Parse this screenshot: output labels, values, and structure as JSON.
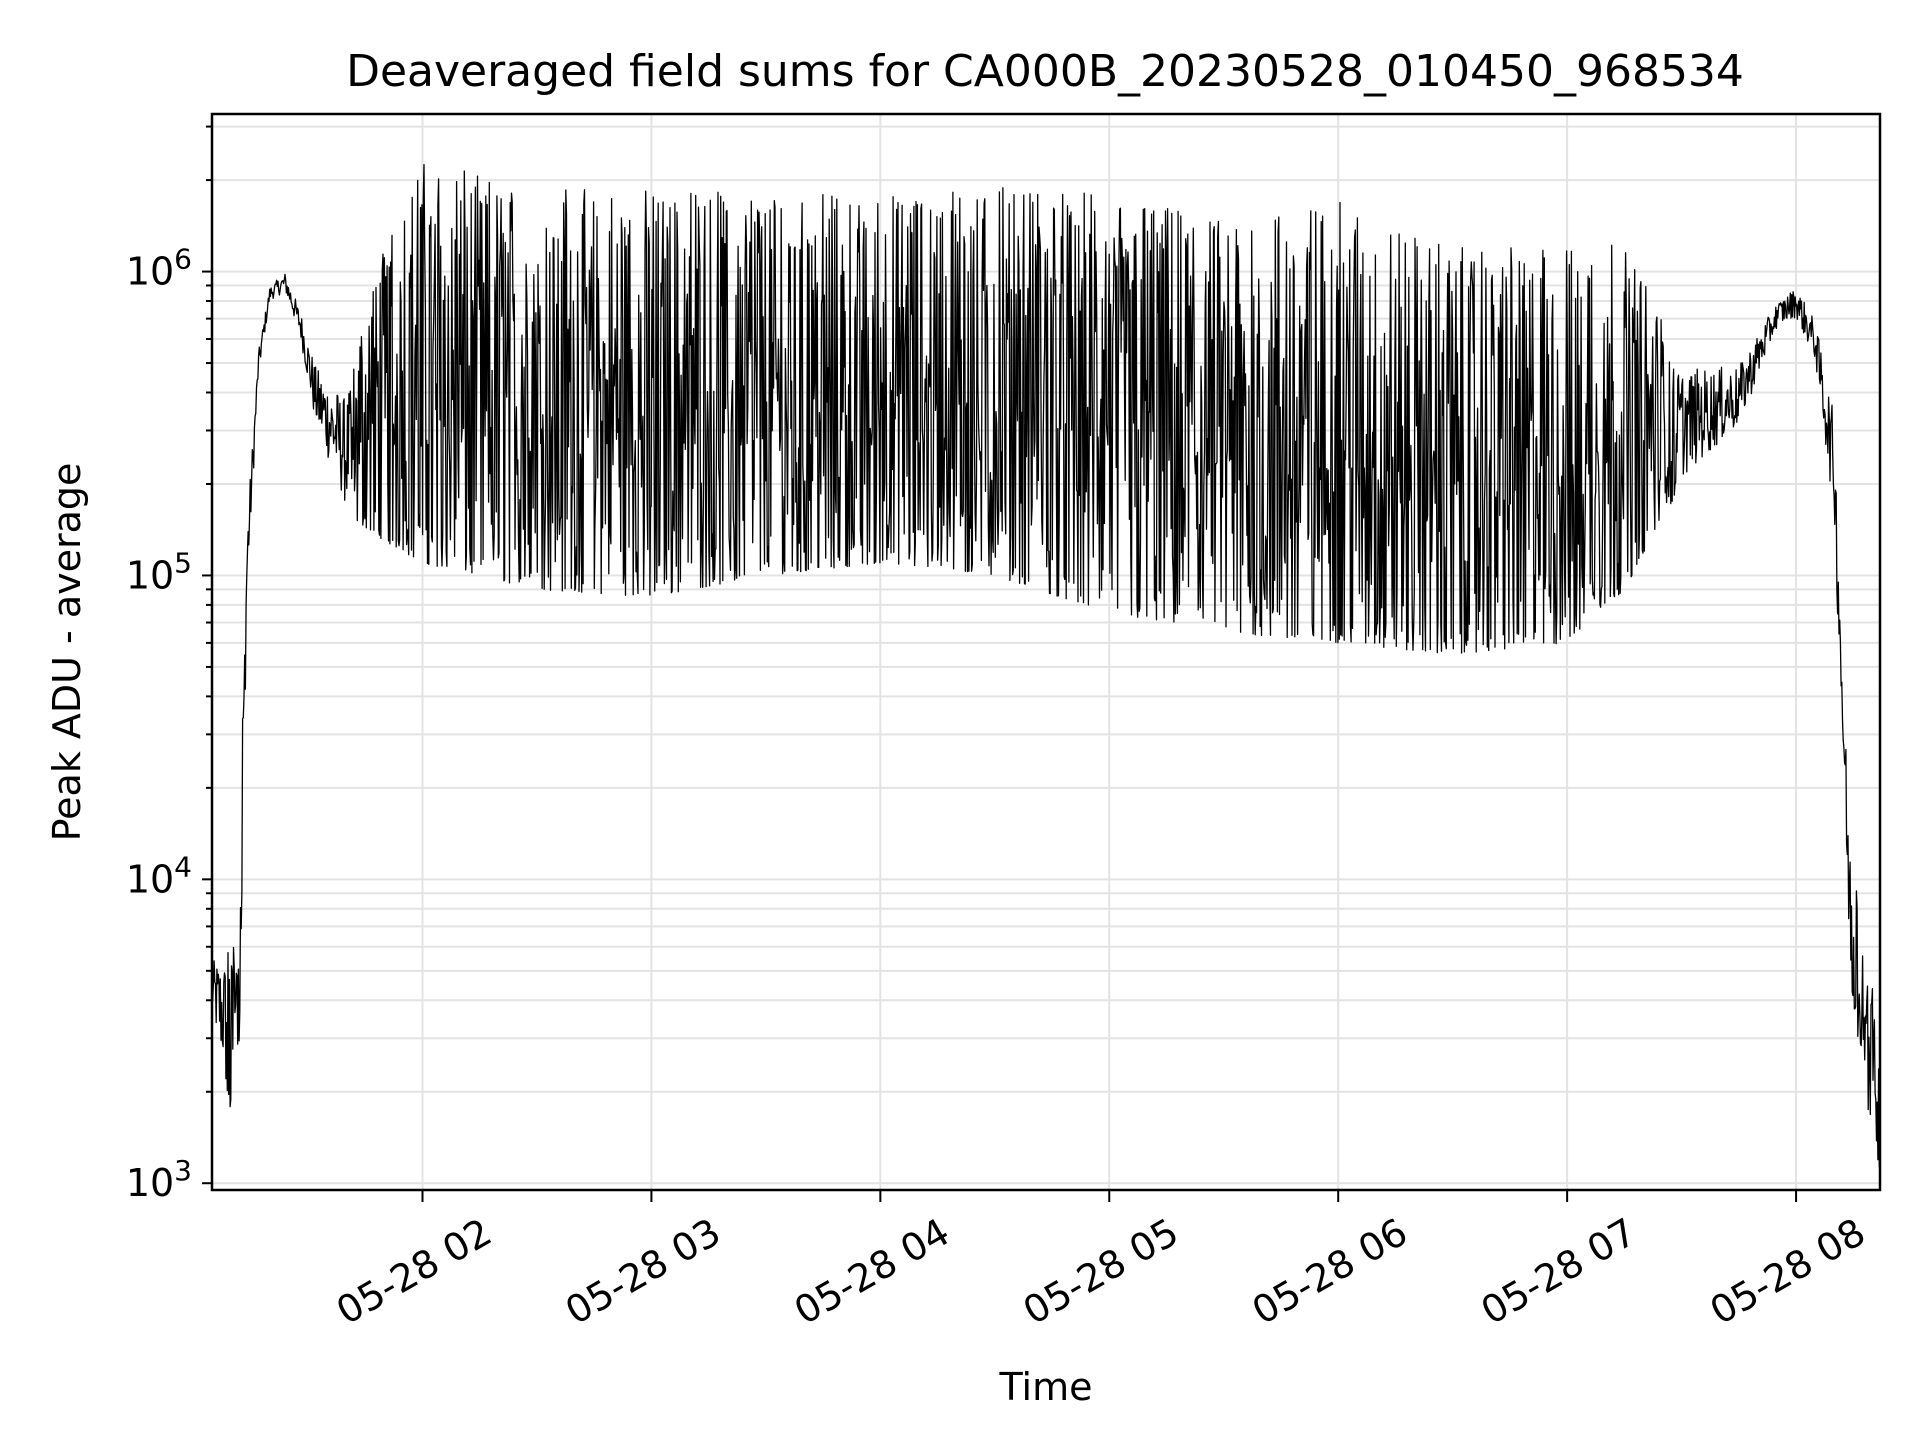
{
  "chart_data": {
    "type": "line",
    "title": "Deaveraged field sums for CA000B_20230528_010450_968534",
    "xlabel": "Time",
    "ylabel": "Peak ADU - average",
    "yscale": "log",
    "grid": true,
    "xlim": [
      "2023-05-28 01:04:50",
      "2023-05-28 08:22:00"
    ],
    "ylim": [
      950,
      3300000
    ],
    "yticks": [
      {
        "value": 1000,
        "base": "10",
        "exp": "3"
      },
      {
        "value": 10000,
        "base": "10",
        "exp": "4"
      },
      {
        "value": 100000,
        "base": "10",
        "exp": "5"
      },
      {
        "value": 1000000,
        "base": "10",
        "exp": "6"
      }
    ],
    "xticks": [
      {
        "time": "2023-05-28 02:00",
        "label": "05-28 02"
      },
      {
        "time": "2023-05-28 03:00",
        "label": "05-28 03"
      },
      {
        "time": "2023-05-28 04:00",
        "label": "05-28 04"
      },
      {
        "time": "2023-05-28 05:00",
        "label": "05-28 05"
      },
      {
        "time": "2023-05-28 06:00",
        "label": "05-28 06"
      },
      {
        "time": "2023-05-28 07:00",
        "label": "05-28 07"
      },
      {
        "time": "2023-05-28 08:00",
        "label": "05-28 08"
      }
    ],
    "series": [
      {
        "color": "#000000",
        "envelope_points": [
          {
            "time": "2023-05-28 01:04:50",
            "low": 3500,
            "high": 5500
          },
          {
            "time": "2023-05-28 01:10:00",
            "low": 1600,
            "high": 6000
          },
          {
            "time": "2023-05-28 01:12:00",
            "low": 3000,
            "high": 14000
          },
          {
            "time": "2023-05-28 01:14:00",
            "low": 80000,
            "high": 150000
          },
          {
            "time": "2023-05-28 01:17:00",
            "low": 450000,
            "high": 550000
          },
          {
            "time": "2023-05-28 01:20:00",
            "low": 800000,
            "high": 900000
          },
          {
            "time": "2023-05-28 01:24:00",
            "low": 850000,
            "high": 1000000
          },
          {
            "time": "2023-05-28 01:28:00",
            "low": 600000,
            "high": 750000
          },
          {
            "time": "2023-05-28 01:32:00",
            "low": 300000,
            "high": 500000
          },
          {
            "time": "2023-05-28 01:40:00",
            "low": 160000,
            "high": 400000
          },
          {
            "time": "2023-05-28 01:50:00",
            "low": 130000,
            "high": 1300000
          },
          {
            "time": "2023-05-28 02:00:00",
            "low": 110000,
            "high": 2300000
          },
          {
            "time": "2023-05-28 02:30:00",
            "low": 90000,
            "high": 1900000
          },
          {
            "time": "2023-05-28 03:00:00",
            "low": 85000,
            "high": 1900000
          },
          {
            "time": "2023-05-28 03:30:00",
            "low": 100000,
            "high": 1800000
          },
          {
            "time": "2023-05-28 04:00:00",
            "low": 110000,
            "high": 1800000
          },
          {
            "time": "2023-05-28 04:30:00",
            "low": 100000,
            "high": 1900000
          },
          {
            "time": "2023-05-28 05:00:00",
            "low": 75000,
            "high": 1800000
          },
          {
            "time": "2023-05-28 05:30:00",
            "low": 65000,
            "high": 1500000
          },
          {
            "time": "2023-05-28 06:00:00",
            "low": 60000,
            "high": 1700000
          },
          {
            "time": "2023-05-28 06:30:00",
            "low": 55000,
            "high": 1200000
          },
          {
            "time": "2023-05-28 07:00:00",
            "low": 60000,
            "high": 1200000
          },
          {
            "time": "2023-05-28 07:15:00",
            "low": 90000,
            "high": 1300000
          },
          {
            "time": "2023-05-28 07:30:00",
            "low": 200000,
            "high": 500000
          },
          {
            "time": "2023-05-28 07:45:00",
            "low": 300000,
            "high": 500000
          },
          {
            "time": "2023-05-28 07:55:00",
            "low": 650000,
            "high": 800000
          },
          {
            "time": "2023-05-28 08:00:00",
            "low": 700000,
            "high": 900000
          },
          {
            "time": "2023-05-28 08:05:00",
            "low": 500000,
            "high": 700000
          },
          {
            "time": "2023-05-28 08:10:00",
            "low": 150000,
            "high": 350000
          },
          {
            "time": "2023-05-28 08:14:00",
            "low": 5000,
            "high": 14000
          },
          {
            "time": "2023-05-28 08:18:00",
            "low": 2000,
            "high": 6000
          },
          {
            "time": "2023-05-28 08:22:00",
            "low": 1100,
            "high": 3500
          }
        ]
      }
    ]
  }
}
